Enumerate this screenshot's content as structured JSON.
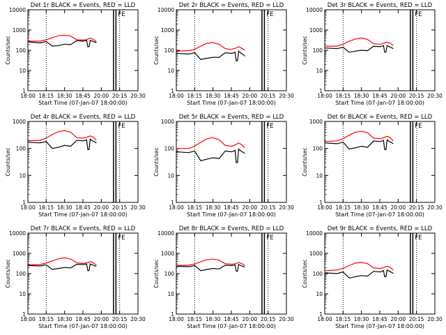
{
  "chart_data": [
    {
      "type": "line",
      "title": "Det 1r BLACK = Events, RED = LLD",
      "xlabel": "Start Time (07-Jan-07 18:00:00)",
      "ylabel": "Counts/sec",
      "x_ticks": [
        "18:00",
        "18:15",
        "18:30",
        "18:45",
        "20:00",
        "20:15",
        "20:30"
      ],
      "y_ticks": [
        "1",
        "10",
        "100",
        "1000",
        "10000"
      ],
      "y_scale": "log",
      "ylim": [
        1,
        10000
      ],
      "annotation": "FE",
      "vertical_markers_dotted": [
        "18:15",
        "20:15"
      ],
      "vertical_markers_solid": [
        "20:10",
        "20:12"
      ],
      "x": [
        "18:00",
        "18:10",
        "18:15",
        "18:20",
        "18:25",
        "18:30",
        "18:35",
        "18:40",
        "18:45",
        "18:55",
        "19:00",
        "19:05",
        "19:10",
        "19:15",
        "19:20",
        "19:25",
        "19:30",
        "19:35",
        "19:40"
      ],
      "series": [
        {
          "color": "#000000",
          "values": [
            260,
            230,
            270,
            160,
            170,
            200,
            190,
            300,
            280,
            300,
            310,
            150,
            150,
            310,
            290,
            280,
            260,
            250,
            230
          ]
        },
        {
          "color": "#ff0000",
          "values": [
            280,
            280,
            330,
            420,
            520,
            560,
            500,
            330,
            320,
            330,
            340,
            360,
            380,
            390,
            380,
            360,
            330,
            290,
            260
          ]
        }
      ]
    },
    {
      "type": "line",
      "title": "Det 2r BLACK = Events, RED = LLD",
      "xlabel": "Start Time (07-Jan-07 18:00:00)",
      "ylabel": "Counts/sec",
      "x_ticks": [
        "18:00",
        "18:15",
        "18:30",
        "18:45",
        "20:00",
        "20:15",
        "20:30"
      ],
      "y_ticks": [
        "1",
        "10",
        "100",
        "1000",
        "10000"
      ],
      "y_scale": "log",
      "ylim": [
        1,
        10000
      ],
      "annotation": "FE",
      "vertical_markers_dotted": [
        "18:15",
        "20:15"
      ],
      "vertical_markers_solid": [
        "20:10",
        "20:12"
      ],
      "x": [
        "18:00",
        "18:10",
        "18:15",
        "18:20",
        "18:25",
        "18:30",
        "18:35",
        "18:40",
        "18:45",
        "18:55",
        "19:00",
        "19:05",
        "19:10",
        "19:15",
        "19:20",
        "19:25",
        "19:30",
        "19:35",
        "19:40"
      ],
      "series": [
        {
          "color": "#000000",
          "values": [
            70,
            65,
            75,
            35,
            40,
            45,
            45,
            75,
            70,
            75,
            80,
            30,
            30,
            90,
            80,
            70,
            65,
            60,
            50
          ]
        },
        {
          "color": "#ff0000",
          "values": [
            90,
            95,
            110,
            160,
            220,
            240,
            200,
            120,
            110,
            120,
            125,
            130,
            140,
            150,
            140,
            130,
            120,
            110,
            100
          ]
        }
      ]
    },
    {
      "type": "line",
      "title": "Det 3r BLACK = Events, RED = LLD",
      "xlabel": "Start Time (07-Jan-07 18:00:00)",
      "ylabel": "Counts/sec",
      "x_ticks": [
        "18:00",
        "18:15",
        "18:30",
        "18:45",
        "20:00",
        "20:15",
        "20:30"
      ],
      "y_ticks": [
        "1",
        "10",
        "100",
        "1000",
        "10000"
      ],
      "y_scale": "log",
      "ylim": [
        1,
        10000
      ],
      "annotation": "FE",
      "vertical_markers_dotted": [
        "18:15",
        "20:15"
      ],
      "vertical_markers_solid": [
        "20:10",
        "20:12"
      ],
      "x": [
        "18:00",
        "18:10",
        "18:15",
        "18:20",
        "18:25",
        "18:30",
        "18:35",
        "18:40",
        "18:45",
        "18:55",
        "19:00",
        "19:05",
        "19:10",
        "19:15",
        "19:20",
        "19:25",
        "19:30",
        "19:35",
        "19:40"
      ],
      "series": [
        {
          "color": "#000000",
          "values": [
            130,
            120,
            140,
            80,
            90,
            100,
            95,
            160,
            150,
            160,
            170,
            80,
            80,
            170,
            160,
            150,
            140,
            130,
            120
          ]
        },
        {
          "color": "#ff0000",
          "values": [
            160,
            160,
            200,
            280,
            360,
            400,
            340,
            210,
            200,
            210,
            220,
            230,
            240,
            250,
            240,
            230,
            210,
            190,
            170
          ]
        }
      ]
    },
    {
      "type": "line",
      "title": "Det 4r BLACK = Events, RED = LLD",
      "xlabel": "Start Time (07-Jan-07 18:00:00)",
      "ylabel": "Counts/sec",
      "x_ticks": [
        "18:00",
        "18:15",
        "18:30",
        "18:45",
        "20:00",
        "20:15",
        "20:30"
      ],
      "y_ticks": [
        "1",
        "10",
        "100",
        "1000"
      ],
      "y_scale": "log",
      "ylim": [
        1,
        1000
      ],
      "annotation": "FE",
      "vertical_markers_dotted": [
        "18:15",
        "20:15"
      ],
      "vertical_markers_solid": [
        "20:10",
        "20:12"
      ],
      "x": [
        "18:00",
        "18:10",
        "18:15",
        "18:20",
        "18:25",
        "18:30",
        "18:35",
        "18:40",
        "18:45",
        "18:55",
        "19:00",
        "19:05",
        "19:10",
        "19:15",
        "19:20",
        "19:25",
        "19:30",
        "19:35",
        "19:40"
      ],
      "series": [
        {
          "color": "#000000",
          "values": [
            170,
            160,
            180,
            100,
            110,
            130,
            120,
            200,
            190,
            200,
            210,
            90,
            90,
            220,
            200,
            190,
            180,
            170,
            160
          ]
        },
        {
          "color": "#ff0000",
          "values": [
            190,
            200,
            240,
            330,
            420,
            460,
            400,
            250,
            240,
            250,
            260,
            270,
            280,
            290,
            280,
            270,
            250,
            220,
            200
          ]
        }
      ]
    },
    {
      "type": "line",
      "title": "Det 5r BLACK = Events, RED = LLD",
      "xlabel": "Start Time (07-Jan-07 18:00:00)",
      "ylabel": "Counts/sec",
      "x_ticks": [
        "18:00",
        "18:15",
        "18:30",
        "18:45",
        "20:00",
        "20:15",
        "20:30"
      ],
      "y_ticks": [
        "1",
        "10",
        "100",
        "1000"
      ],
      "y_scale": "log",
      "ylim": [
        1,
        1000
      ],
      "annotation": "FE",
      "vertical_markers_dotted": [
        "18:15",
        "20:15"
      ],
      "vertical_markers_solid": [
        "20:10",
        "20:12"
      ],
      "x": [
        "18:00",
        "18:10",
        "18:15",
        "18:20",
        "18:25",
        "18:30",
        "18:35",
        "18:40",
        "18:45",
        "18:55",
        "19:00",
        "19:05",
        "19:10",
        "19:15",
        "19:20",
        "19:25",
        "19:30",
        "19:35",
        "19:40"
      ],
      "series": [
        {
          "color": "#000000",
          "values": [
            75,
            70,
            80,
            35,
            40,
            45,
            42,
            80,
            75,
            80,
            85,
            30,
            30,
            95,
            85,
            80,
            75,
            70,
            65
          ]
        },
        {
          "color": "#ff0000",
          "values": [
            100,
            100,
            120,
            170,
            230,
            250,
            210,
            130,
            120,
            130,
            135,
            140,
            150,
            160,
            150,
            140,
            130,
            115,
            105
          ]
        }
      ]
    },
    {
      "type": "line",
      "title": "Det 6r BLACK = Events, RED = LLD",
      "xlabel": "Start Time (07-Jan-07 18:00:00)",
      "ylabel": "Counts/sec",
      "x_ticks": [
        "18:00",
        "18:15",
        "18:30",
        "18:45",
        "20:00",
        "20:15",
        "20:30"
      ],
      "y_ticks": [
        "1",
        "10",
        "100",
        "1000"
      ],
      "y_scale": "log",
      "ylim": [
        1,
        1000
      ],
      "annotation": "FE",
      "vertical_markers_dotted": [
        "18:15",
        "20:15"
      ],
      "vertical_markers_solid": [
        "20:10",
        "20:12"
      ],
      "x": [
        "18:00",
        "18:10",
        "18:15",
        "18:20",
        "18:25",
        "18:30",
        "18:35",
        "18:40",
        "18:45",
        "18:55",
        "19:00",
        "19:05",
        "19:10",
        "19:15",
        "19:20",
        "19:25",
        "19:30",
        "19:35",
        "19:40"
      ],
      "series": [
        {
          "color": "#000000",
          "values": [
            160,
            150,
            170,
            95,
            105,
            120,
            110,
            190,
            180,
            190,
            200,
            90,
            90,
            210,
            190,
            180,
            170,
            160,
            150
          ]
        },
        {
          "color": "#ff0000",
          "values": [
            180,
            190,
            230,
            310,
            400,
            430,
            380,
            240,
            230,
            240,
            250,
            260,
            270,
            280,
            270,
            260,
            240,
            210,
            190
          ]
        }
      ]
    },
    {
      "type": "line",
      "title": "Det 7r BLACK = Events, RED = LLD",
      "xlabel": "Start Time (07-Jan-07 18:00:00)",
      "ylabel": "Counts/sec",
      "x_ticks": [
        "18:00",
        "18:15",
        "18:30",
        "18:45",
        "20:00",
        "20:15",
        "20:30"
      ],
      "y_ticks": [
        "1",
        "10",
        "100",
        "1000",
        "10000"
      ],
      "y_scale": "log",
      "ylim": [
        1,
        10000
      ],
      "annotation": "FE",
      "vertical_markers_dotted": [
        "18:15",
        "20:15"
      ],
      "vertical_markers_solid": [
        "20:10",
        "20:12"
      ],
      "x": [
        "18:00",
        "18:10",
        "18:15",
        "18:20",
        "18:25",
        "18:30",
        "18:35",
        "18:40",
        "18:45",
        "18:55",
        "19:00",
        "19:05",
        "19:10",
        "19:15",
        "19:20",
        "19:25",
        "19:30",
        "19:35",
        "19:40"
      ],
      "series": [
        {
          "color": "#000000",
          "values": [
            250,
            240,
            270,
            160,
            180,
            200,
            190,
            290,
            280,
            290,
            300,
            140,
            140,
            300,
            280,
            270,
            250,
            240,
            230
          ]
        },
        {
          "color": "#ff0000",
          "values": [
            270,
            280,
            330,
            420,
            540,
            600,
            520,
            340,
            320,
            330,
            340,
            350,
            370,
            380,
            370,
            350,
            320,
            290,
            270
          ]
        }
      ]
    },
    {
      "type": "line",
      "title": "Det 8r BLACK = Events, RED = LLD",
      "xlabel": "Start Time (07-Jan-07 18:00:00)",
      "ylabel": "Counts/sec",
      "x_ticks": [
        "18:00",
        "18:15",
        "18:30",
        "18:45",
        "20:00",
        "20:15",
        "20:30"
      ],
      "y_ticks": [
        "1",
        "10",
        "100",
        "1000",
        "10000"
      ],
      "y_scale": "log",
      "ylim": [
        1,
        10000
      ],
      "annotation": "FE",
      "vertical_markers_dotted": [
        "18:15",
        "20:15"
      ],
      "vertical_markers_solid": [
        "20:10",
        "20:12"
      ],
      "x": [
        "18:00",
        "18:10",
        "18:15",
        "18:20",
        "18:25",
        "18:30",
        "18:35",
        "18:40",
        "18:45",
        "18:55",
        "19:00",
        "19:05",
        "19:10",
        "19:15",
        "19:20",
        "19:25",
        "19:30",
        "19:35",
        "19:40"
      ],
      "series": [
        {
          "color": "#000000",
          "values": [
            230,
            220,
            250,
            140,
            160,
            180,
            170,
            260,
            250,
            260,
            270,
            130,
            130,
            280,
            260,
            250,
            230,
            220,
            210
          ]
        },
        {
          "color": "#ff0000",
          "values": [
            250,
            260,
            300,
            390,
            480,
            520,
            460,
            310,
            290,
            300,
            310,
            320,
            340,
            350,
            340,
            320,
            300,
            270,
            250
          ]
        }
      ]
    },
    {
      "type": "line",
      "title": "Det 9r BLACK = Events, RED = LLD",
      "xlabel": "Start Time (07-Jan-07 18:00:00)",
      "ylabel": "Counts/sec",
      "x_ticks": [
        "18:00",
        "18:15",
        "18:30",
        "18:45",
        "20:00",
        "20:15",
        "20:30"
      ],
      "y_ticks": [
        "1",
        "10",
        "100",
        "1000",
        "10000"
      ],
      "y_scale": "log",
      "ylim": [
        1,
        10000
      ],
      "annotation": "FE",
      "vertical_markers_dotted": [
        "18:15",
        "20:15"
      ],
      "vertical_markers_solid": [
        "20:10",
        "20:12"
      ],
      "x": [
        "18:00",
        "18:10",
        "18:15",
        "18:20",
        "18:25",
        "18:30",
        "18:35",
        "18:40",
        "18:45",
        "18:55",
        "19:00",
        "19:05",
        "19:10",
        "19:15",
        "19:20",
        "19:25",
        "19:30",
        "19:35",
        "19:40"
      ],
      "series": [
        {
          "color": "#000000",
          "values": [
            110,
            100,
            120,
            60,
            70,
            80,
            75,
            130,
            120,
            130,
            140,
            70,
            70,
            150,
            140,
            130,
            120,
            110,
            100
          ]
        },
        {
          "color": "#ff0000",
          "values": [
            140,
            150,
            180,
            250,
            330,
            360,
            310,
            190,
            180,
            190,
            200,
            210,
            220,
            230,
            220,
            210,
            190,
            170,
            150
          ]
        }
      ]
    }
  ]
}
